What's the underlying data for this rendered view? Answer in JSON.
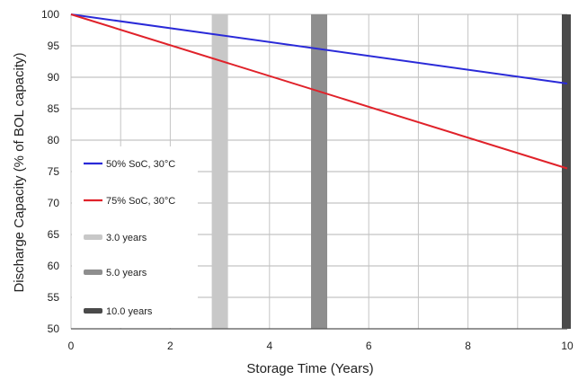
{
  "chart_data": {
    "type": "line",
    "title": "",
    "xlabel": "Storage Time (Years)",
    "ylabel": "Discharge Capacity (% of BOL capacity)",
    "xlim": [
      0,
      10
    ],
    "ylim": [
      50,
      100
    ],
    "x_ticks": [
      0,
      2,
      4,
      6,
      8,
      10
    ],
    "y_ticks": [
      50,
      55,
      60,
      65,
      70,
      75,
      80,
      85,
      90,
      95,
      100
    ],
    "x_minor_gridlines": [
      0,
      1,
      2,
      3,
      4,
      5,
      6,
      7,
      8,
      9,
      10
    ],
    "grid": true,
    "legend_placement": "bottom-left",
    "series": [
      {
        "name": "50% SoC, 30°C",
        "color": "#2a2ad8",
        "x": [
          0,
          10
        ],
        "y": [
          100,
          89
        ]
      },
      {
        "name": "75% SoC, 30°C",
        "color": "#e0222a",
        "x": [
          0,
          10
        ],
        "y": [
          100,
          75.5
        ]
      }
    ],
    "markers": [
      {
        "name": "3.0 years",
        "x": 3.0,
        "color": "#c8c8c8"
      },
      {
        "name": "5.0 years",
        "x": 5.0,
        "color": "#8e8e8e"
      },
      {
        "name": "10.0 years",
        "x": 10.0,
        "color": "#4a4a4a"
      }
    ]
  }
}
